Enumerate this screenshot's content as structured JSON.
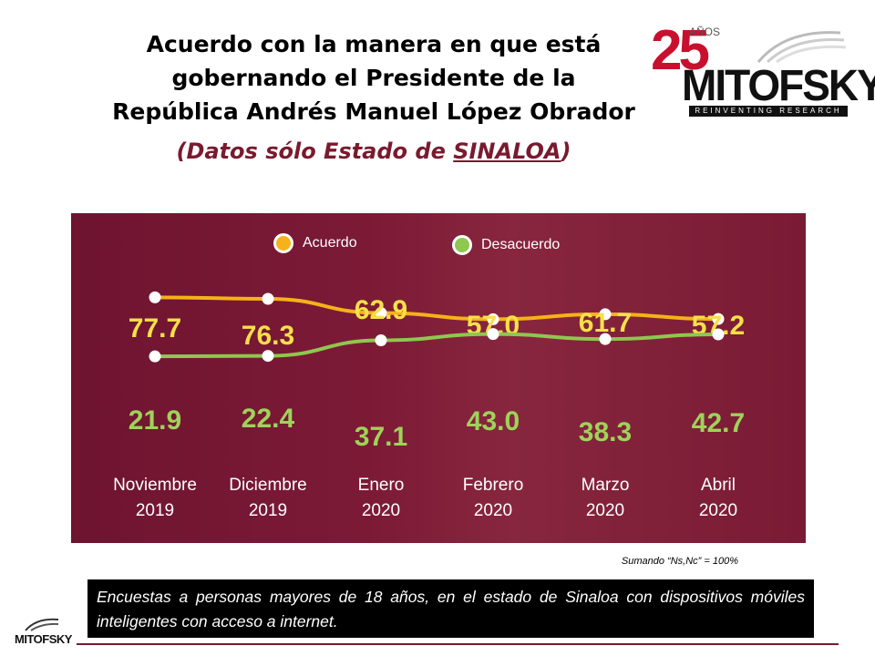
{
  "header": {
    "title_lines": [
      "Acuerdo con la manera en que está",
      "gobernando el Presidente de la",
      "República Andrés Manuel López Obrador"
    ],
    "subtitle_pre": "(Datos sólo Estado de ",
    "subtitle_state": "SINALOA",
    "subtitle_post": ")"
  },
  "logo": {
    "anniversary": "25",
    "anniversary_unit": "AÑOS",
    "brand": "MITOFSKY",
    "tagline": "REINVENTING RESEARCH"
  },
  "chart_data": {
    "type": "line",
    "categories": [
      [
        "Noviembre",
        "2019"
      ],
      [
        "Diciembre",
        "2019"
      ],
      [
        "Enero",
        "2020"
      ],
      [
        "Febrero",
        "2020"
      ],
      [
        "Marzo",
        "2020"
      ],
      [
        "Abril",
        "2020"
      ]
    ],
    "series": [
      {
        "name": "Acuerdo",
        "color": "#f5b21a",
        "label_color": "#f5e04a",
        "values": [
          77.7,
          76.3,
          62.9,
          57.0,
          61.7,
          57.2
        ],
        "labels": [
          "77.7",
          "76.3",
          "62.9",
          "57.0",
          "61.7",
          "57.2"
        ]
      },
      {
        "name": "Desacuerdo",
        "color": "#8fc74f",
        "label_color": "#9ed35a",
        "values": [
          21.9,
          22.4,
          37.1,
          43.0,
          38.3,
          42.7
        ],
        "labels": [
          "21.9",
          "22.4",
          "37.1",
          "43.0",
          "38.3",
          "42.7"
        ]
      }
    ],
    "legend_position": "top-center",
    "grid": false
  },
  "note": "Sumando “Ns,Nc” = 100%",
  "footer": {
    "text": "Encuestas a personas mayores de 18 años, en el estado de Sinaloa con dispositivos móviles inteligentes con acceso a internet.",
    "logo_brand": "MITOFSKY"
  }
}
